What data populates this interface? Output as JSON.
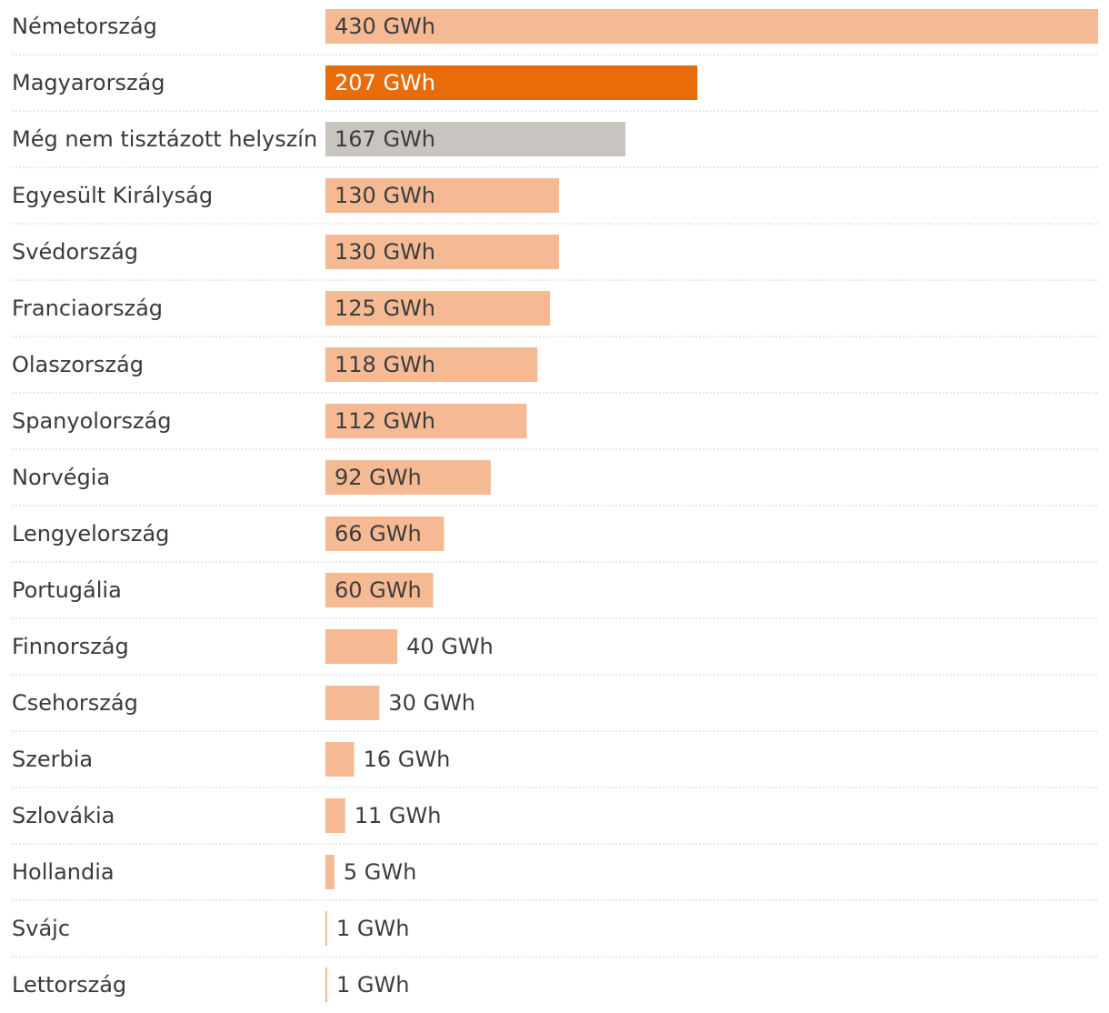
{
  "chart_data": {
    "type": "bar",
    "orientation": "horizontal",
    "unit": "GWh",
    "xlim": [
      0,
      430
    ],
    "categories": [
      "Németország",
      "Magyarország",
      "Még nem tisztázott helyszín",
      "Egyesült Királyság",
      "Svédország",
      "Franciaország",
      "Olaszország",
      "Spanyolország",
      "Norvégia",
      "Lengyelország",
      "Portugália",
      "Finnország",
      "Csehország",
      "Szerbia",
      "Szlovákia",
      "Hollandia",
      "Svájc",
      "Lettország"
    ],
    "values": [
      430,
      207,
      167,
      130,
      130,
      125,
      118,
      112,
      92,
      66,
      60,
      40,
      30,
      16,
      11,
      5,
      1,
      1
    ],
    "value_labels": [
      "430 GWh",
      "207 GWh",
      "167 GWh",
      "130 GWh",
      "130 GWh",
      "125 GWh",
      "118 GWh",
      "112 GWh",
      "92 GWh",
      "66 GWh",
      "60 GWh",
      "40 GWh",
      "30 GWh",
      "16 GWh",
      "11 GWh",
      "5 GWh",
      "1 GWh",
      "1 GWh"
    ],
    "bar_colors": [
      "#f5b994",
      "#e86c0a",
      "#c8c4bf",
      "#f5b994",
      "#f5b994",
      "#f5b994",
      "#f5b994",
      "#f5b994",
      "#f5b994",
      "#f5b994",
      "#f5b994",
      "#f5b994",
      "#f5b994",
      "#f5b994",
      "#f5b994",
      "#f5b994",
      "#f5b994",
      "#f5b994"
    ],
    "label_colors": {
      "inside_default": "#3d3d3d",
      "inside_highlight": "#ffffff",
      "outside": "#3d3d3d"
    }
  }
}
